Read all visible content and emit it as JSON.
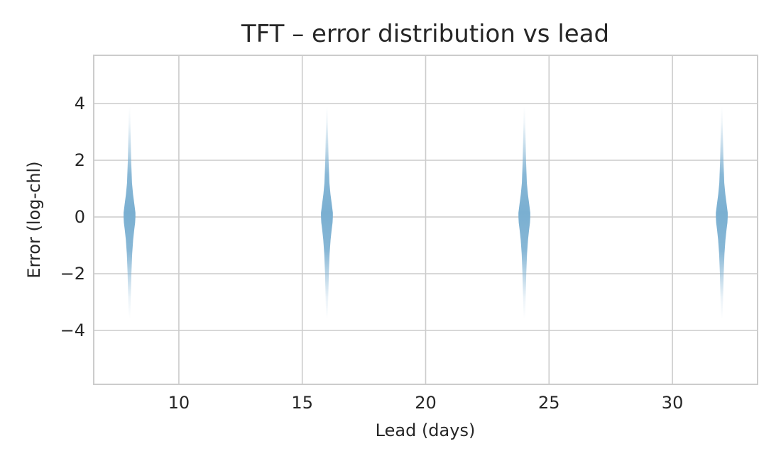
{
  "chart_data": {
    "type": "violin",
    "title": "TFT – error distribution vs lead",
    "xlabel": "Lead (days)",
    "ylabel": "Error (log-chl)",
    "xlim": [
      6.55,
      33.45
    ],
    "ylim": [
      -5.9,
      5.7
    ],
    "xticks": [
      10,
      15,
      20,
      25,
      30
    ],
    "yticks": [
      4,
      2,
      0,
      -2,
      -4
    ],
    "grid": true,
    "violin_color": "#7aafd1",
    "series": [
      {
        "lead": 8,
        "extent": [
          -3.6,
          3.9
        ]
      },
      {
        "lead": 16,
        "extent": [
          -3.6,
          3.9
        ]
      },
      {
        "lead": 24,
        "extent": [
          -3.6,
          3.9
        ]
      },
      {
        "lead": 32,
        "extent": [
          -3.6,
          3.9
        ]
      }
    ]
  }
}
